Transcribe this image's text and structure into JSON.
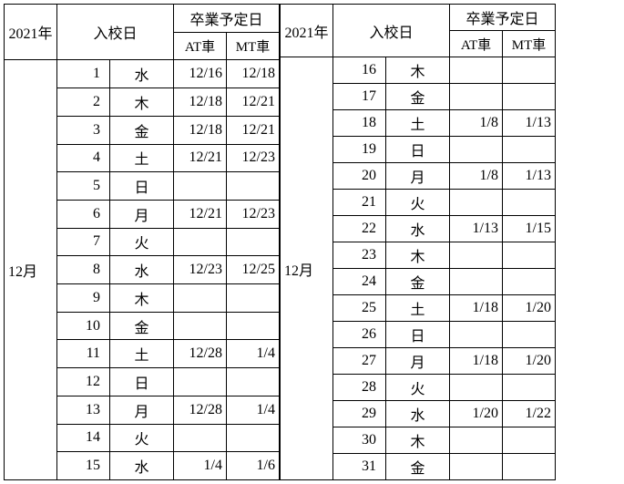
{
  "year_label": "2021年",
  "month_label": "12月",
  "enroll_label": "入校日",
  "grad_label": "卒業予定日",
  "at_label": "AT車",
  "mt_label": "MT車",
  "left_rows": [
    {
      "d": "1",
      "w": "水",
      "at": "12/16",
      "mt": "12/18"
    },
    {
      "d": "2",
      "w": "木",
      "at": "12/18",
      "mt": "12/21"
    },
    {
      "d": "3",
      "w": "金",
      "at": "12/18",
      "mt": "12/21"
    },
    {
      "d": "4",
      "w": "土",
      "at": "12/21",
      "mt": "12/23"
    },
    {
      "d": "5",
      "w": "日",
      "at": "",
      "mt": ""
    },
    {
      "d": "6",
      "w": "月",
      "at": "12/21",
      "mt": "12/23"
    },
    {
      "d": "7",
      "w": "火",
      "at": "",
      "mt": ""
    },
    {
      "d": "8",
      "w": "水",
      "at": "12/23",
      "mt": "12/25"
    },
    {
      "d": "9",
      "w": "木",
      "at": "",
      "mt": ""
    },
    {
      "d": "10",
      "w": "金",
      "at": "",
      "mt": ""
    },
    {
      "d": "11",
      "w": "土",
      "at": "12/28",
      "mt": "1/4"
    },
    {
      "d": "12",
      "w": "日",
      "at": "",
      "mt": ""
    },
    {
      "d": "13",
      "w": "月",
      "at": "12/28",
      "mt": "1/4"
    },
    {
      "d": "14",
      "w": "火",
      "at": "",
      "mt": ""
    },
    {
      "d": "15",
      "w": "水",
      "at": "1/4",
      "mt": "1/6"
    }
  ],
  "right_rows": [
    {
      "d": "16",
      "w": "木",
      "at": "",
      "mt": ""
    },
    {
      "d": "17",
      "w": "金",
      "at": "",
      "mt": ""
    },
    {
      "d": "18",
      "w": "土",
      "at": "1/8",
      "mt": "1/13"
    },
    {
      "d": "19",
      "w": "日",
      "at": "",
      "mt": ""
    },
    {
      "d": "20",
      "w": "月",
      "at": "1/8",
      "mt": "1/13"
    },
    {
      "d": "21",
      "w": "火",
      "at": "",
      "mt": ""
    },
    {
      "d": "22",
      "w": "水",
      "at": "1/13",
      "mt": "1/15"
    },
    {
      "d": "23",
      "w": "木",
      "at": "",
      "mt": ""
    },
    {
      "d": "24",
      "w": "金",
      "at": "",
      "mt": ""
    },
    {
      "d": "25",
      "w": "土",
      "at": "1/18",
      "mt": "1/20"
    },
    {
      "d": "26",
      "w": "日",
      "at": "",
      "mt": ""
    },
    {
      "d": "27",
      "w": "月",
      "at": "1/18",
      "mt": "1/20"
    },
    {
      "d": "28",
      "w": "火",
      "at": "",
      "mt": ""
    },
    {
      "d": "29",
      "w": "水",
      "at": "1/20",
      "mt": "1/22"
    },
    {
      "d": "30",
      "w": "木",
      "at": "",
      "mt": ""
    },
    {
      "d": "31",
      "w": "金",
      "at": "",
      "mt": ""
    }
  ]
}
